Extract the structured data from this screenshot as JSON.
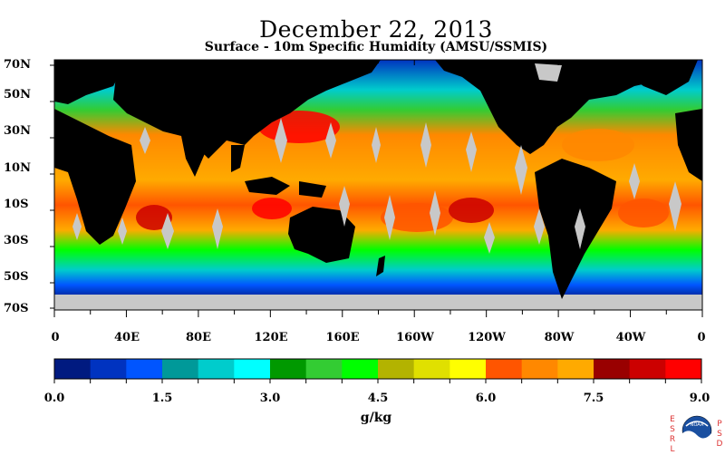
{
  "title": "December 22, 2013",
  "subtitle": "Surface - 10m Specific Humidity (AMSU/SSMIS)",
  "lat_labels": [
    "70N",
    "50N",
    "30N",
    "10N",
    "10S",
    "30S",
    "50S",
    "70S"
  ],
  "lon_labels": [
    "0",
    "40E",
    "80E",
    "120E",
    "160E",
    "160W",
    "120W",
    "80W",
    "40W",
    "0"
  ],
  "colorbar": {
    "tick_labels": [
      "0.0",
      "1.5",
      "3.0",
      "4.5",
      "6.0",
      "7.5",
      "9.0"
    ],
    "units": "g/kg",
    "colors": [
      "#001a80",
      "#0033c0",
      "#0055ff",
      "#009999",
      "#00cccc",
      "#00ffff",
      "#009900",
      "#33cc33",
      "#00ff00",
      "#b3b300",
      "#e0e000",
      "#ffff00",
      "#ff5500",
      "#ff8800",
      "#ffaa00",
      "#990000",
      "#cc0000",
      "#ff0000"
    ]
  },
  "logo": {
    "left_letters": "ESRL",
    "right_letters": "PSD",
    "text": "NOAA"
  },
  "colors": {
    "land": "#000000",
    "missing": "#c8c8c8"
  }
}
